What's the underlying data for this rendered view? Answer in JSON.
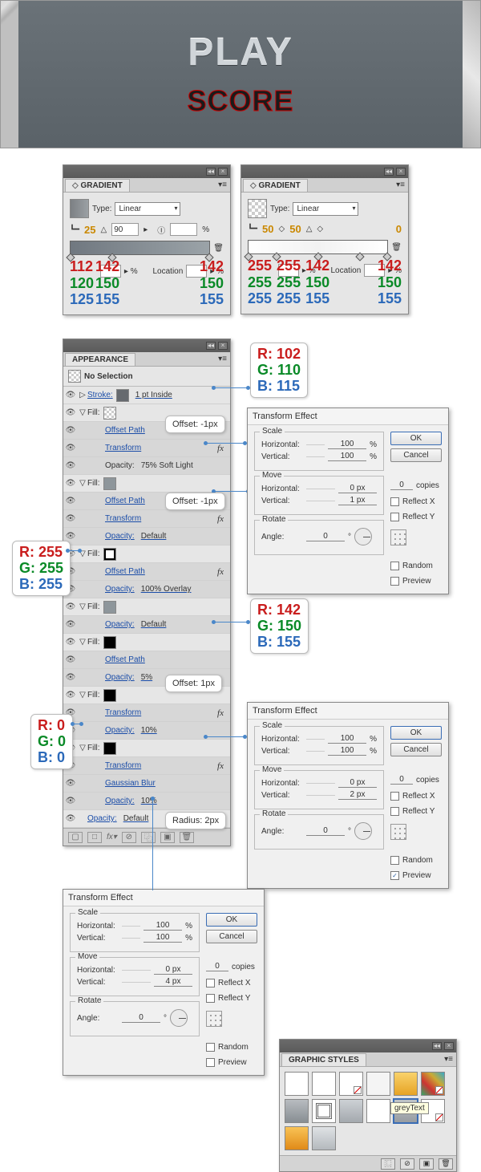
{
  "preview": {
    "play": "PLAY",
    "score": "SCORE"
  },
  "gradient_panels": [
    {
      "title": "GRADIENT",
      "type_label": "Type:",
      "type_value": "Linear",
      "angle": "90",
      "opacity_num": "25",
      "loc_field": "%",
      "bar_gradient": "linear-gradient(to right,#707880,#9ba3a8)",
      "swatch_gradient": "linear-gradient(90deg,#7c8084,#9ba0a4)",
      "stops": [
        0,
        30,
        100
      ],
      "rgb_cols": [
        {
          "r": "112",
          "g": "120",
          "b": "125"
        },
        {
          "r": "142",
          "g": "150",
          "b": "155"
        },
        {
          "r": "142",
          "g": "150",
          "b": "155"
        }
      ]
    },
    {
      "title": "GRADIENT",
      "type_label": "Type:",
      "type_value": "Linear",
      "angle": "",
      "opacity_num_left": "50",
      "opacity_num_mid": "50",
      "opacity_num_right": "0",
      "bar_gradient": "linear-gradient(to right,#fff,#f6f6f6,#fff)",
      "swatch_gradient": "repeating-conic-gradient(#ccc 0 25%,#fff 0 50%) 0/8px 8px",
      "stops": [
        0,
        20,
        50,
        80,
        100
      ],
      "rgb_cols": [
        {
          "r": "255",
          "g": "255",
          "b": "255"
        },
        {
          "r": "255",
          "g": "255",
          "b": "255"
        },
        {
          "r": "142",
          "g": "150",
          "b": "155"
        },
        {
          "r": "142",
          "g": "150",
          "b": "155"
        }
      ]
    }
  ],
  "appearance": {
    "title": "APPEARANCE",
    "no_selection": "No Selection",
    "black_small": "#000",
    "rows": [
      {
        "eye": true,
        "tw": "▷",
        "label": "Stroke:",
        "swatch": "#666a6f",
        "extra": "1 pt  Inside",
        "link": true
      },
      {
        "eye": true,
        "tw": "▽",
        "label": "Fill:",
        "swatch": "checker",
        "alt": false
      },
      {
        "eye": true,
        "label": "Offset Path",
        "link": true,
        "alt": true,
        "callout": "off1"
      },
      {
        "eye": true,
        "label": "Transform",
        "link": true,
        "fx": true,
        "alt": true,
        "transform_link": "t1"
      },
      {
        "eye": true,
        "label": "Opacity:",
        "extra": "75% Soft Light",
        "link": false,
        "alt": true
      },
      {
        "eye": true,
        "tw": "▽",
        "label": "Fill:",
        "swatch": "#8e969b",
        "alt": false,
        "fill_link": "f2"
      },
      {
        "eye": true,
        "label": "Offset Path",
        "link": true,
        "alt": true,
        "callout": "off2"
      },
      {
        "eye": true,
        "label": "Transform",
        "link": true,
        "fx": true,
        "alt": true
      },
      {
        "eye": true,
        "label": "Opacity:",
        "extra": "Default",
        "alt": true,
        "link": true
      },
      {
        "eye": true,
        "tw": "▽",
        "label": "Fill:",
        "swatch": "whitebox",
        "alt": false,
        "fill_link": "fw"
      },
      {
        "eye": true,
        "label": "Offset Path",
        "link": true,
        "fx": true,
        "alt": true
      },
      {
        "eye": true,
        "label": "Opacity:",
        "extra": "100% Overlay",
        "alt": true,
        "link": true
      },
      {
        "eye": true,
        "tw": "▽",
        "label": "Fill:",
        "swatch": "#8e969b",
        "alt": false,
        "fill_link": "f3"
      },
      {
        "eye": true,
        "label": "Opacity:",
        "extra": "Default",
        "alt": true,
        "link": true
      },
      {
        "eye": true,
        "tw": "▽",
        "label": "Fill:",
        "swatch": "#000",
        "alt": false
      },
      {
        "eye": true,
        "label": "Offset Path",
        "link": true,
        "alt": true,
        "callout": "off3"
      },
      {
        "eye": true,
        "label": "Opacity:",
        "extra": "5%",
        "alt": true,
        "link": true
      },
      {
        "eye": true,
        "tw": "▽",
        "label": "Fill:",
        "swatch": "#000",
        "alt": false,
        "fill_link": "fb"
      },
      {
        "eye": true,
        "label": "Transform",
        "link": true,
        "fx": true,
        "alt": true,
        "transform_link": "t2"
      },
      {
        "eye": true,
        "label": "Opacity:",
        "extra": "10%",
        "alt": true,
        "link": true
      },
      {
        "eye": true,
        "tw": "▽",
        "label": "Fill:",
        "swatch": "#000",
        "alt": false
      },
      {
        "eye": true,
        "label": "Transform",
        "link": true,
        "fx": true,
        "alt": true,
        "transform_link": "t3"
      },
      {
        "eye": true,
        "label": "Gaussian Blur",
        "link": true,
        "alt": true,
        "callout": "rad"
      },
      {
        "eye": true,
        "label": "Opacity:",
        "extra": "10%",
        "alt": true,
        "link": true
      },
      {
        "eye": true,
        "label": "Opacity:",
        "extra": "Default",
        "link": true,
        "master": true
      }
    ],
    "callouts": {
      "off1": "Offset: -1px",
      "off2": "Offset: -1px",
      "off3": "Offset: 1px",
      "rad": "Radius: 2px"
    }
  },
  "transform": {
    "title": "Transform Effect",
    "scale": "Scale",
    "move": "Move",
    "rotate": "Rotate",
    "horizontal": "Horizontal:",
    "vertical": "Vertical:",
    "angle": "Angle:",
    "ok": "OK",
    "cancel": "Cancel",
    "copies": "copies",
    "reflectx": "Reflect X",
    "reflecty": "Reflect Y",
    "random": "Random",
    "preview": "Preview",
    "dialogs": [
      {
        "scaleH": "100",
        "scaleV": "100",
        "moveH": "0 px",
        "moveV": "1 px",
        "angle": "0",
        "copies": "0",
        "preview": false
      },
      {
        "scaleH": "100",
        "scaleV": "100",
        "moveH": "0 px",
        "moveV": "2 px",
        "angle": "0",
        "copies": "0",
        "preview": true
      },
      {
        "scaleH": "100",
        "scaleV": "100",
        "moveH": "0 px",
        "moveV": "4 px",
        "angle": "0",
        "copies": "0",
        "preview": false
      }
    ]
  },
  "rgb_callouts": {
    "stroke": {
      "r": "R: 102",
      "g": "G: 110",
      "b": "B: 115"
    },
    "white": {
      "r": "R: 255",
      "g": "G: 255",
      "b": "B: 255"
    },
    "grey": {
      "r": "R: 142",
      "g": "G: 150",
      "b": "B: 155"
    },
    "black": {
      "r": "R: 0",
      "g": "G: 0",
      "b": "B: 0"
    }
  },
  "graphic_styles": {
    "title": "GRAPHIC STYLES",
    "tooltip": "greyText",
    "cells": [
      {
        "bg": "#fff",
        "noedit": false
      },
      {
        "bg": "#fff",
        "noedit": false
      },
      {
        "bg": "#fff",
        "noedit": true
      },
      {
        "bg": "#f4f4f4",
        "noedit": false
      },
      {
        "bg": "linear-gradient(#f9d26b,#e6a325)",
        "noedit": false
      },
      {
        "bg": "linear-gradient(45deg,#3a6,#c33,#ca3,#3ac)",
        "noedit": true
      },
      {
        "bg": "linear-gradient(#b8bcc0,#888e93)",
        "noedit": false
      },
      {
        "bg": "#fff",
        "noedit": false,
        "inner": "#666"
      },
      {
        "bg": "linear-gradient(#cdd1d5,#a4a9ae)",
        "noedit": false
      },
      {
        "bg": "#fff",
        "noedit": false
      },
      {
        "bg": "linear-gradient(#bfc4c9,#979ca1)",
        "noedit": false,
        "sel": true
      },
      {
        "bg": "#fff",
        "noedit": true
      },
      {
        "bg": "linear-gradient(#f9c356,#e08a18)",
        "noedit": false
      },
      {
        "bg": "linear-gradient(#dfe2e5,#b4b9bd)",
        "noedit": false
      }
    ]
  }
}
